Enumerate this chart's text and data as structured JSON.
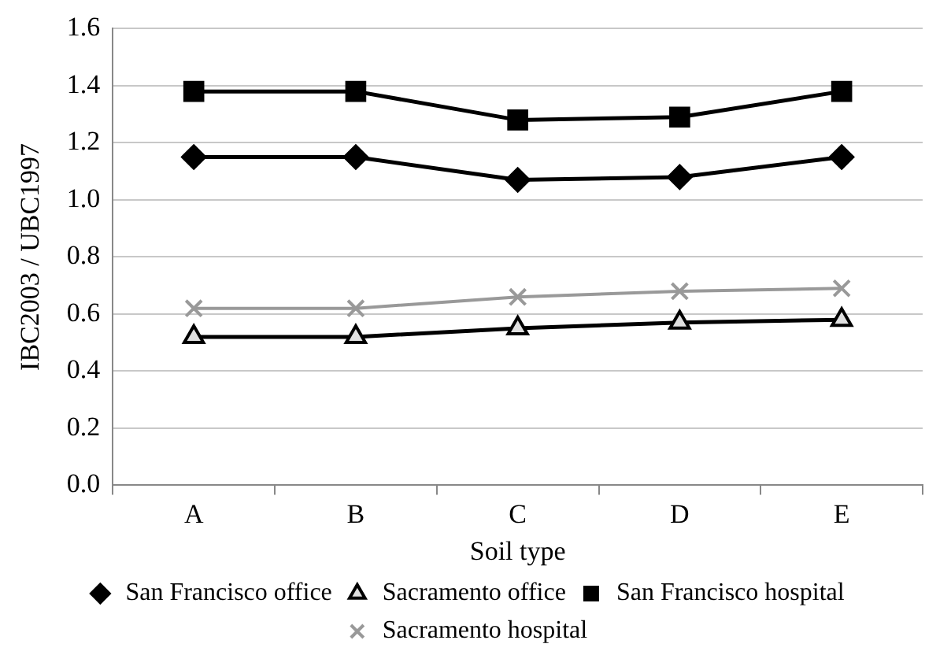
{
  "chart_data": {
    "type": "line",
    "xlabel": "Soil type",
    "ylabel": "IBC2003 / UBC1997",
    "categories": [
      "A",
      "B",
      "C",
      "D",
      "E"
    ],
    "series": [
      {
        "name": "San Francisco office",
        "color": "#000000",
        "marker": "diamond",
        "values": [
          1.15,
          1.15,
          1.07,
          1.08,
          1.15
        ]
      },
      {
        "name": "Sacramento office",
        "color": "#000000",
        "marker": "triangle",
        "values": [
          0.52,
          0.52,
          0.55,
          0.57,
          0.58
        ]
      },
      {
        "name": "San Francisco hospital",
        "color": "#000000",
        "marker": "square",
        "values": [
          1.38,
          1.38,
          1.28,
          1.29,
          1.38
        ]
      },
      {
        "name": "Sacramento hospital",
        "color": "#999999",
        "marker": "cross",
        "values": [
          0.62,
          0.62,
          0.66,
          0.68,
          0.69
        ]
      }
    ],
    "ylim": [
      0,
      1.6
    ],
    "yticks": [
      {
        "value": 0,
        "label": "0.0"
      },
      0.2,
      0.4,
      0.6,
      0.8,
      {
        "value": 1,
        "label": "1.0"
      },
      1.2,
      1.4,
      1.6
    ],
    "grid": "y",
    "legend": "bottom",
    "line_style": "solid"
  }
}
